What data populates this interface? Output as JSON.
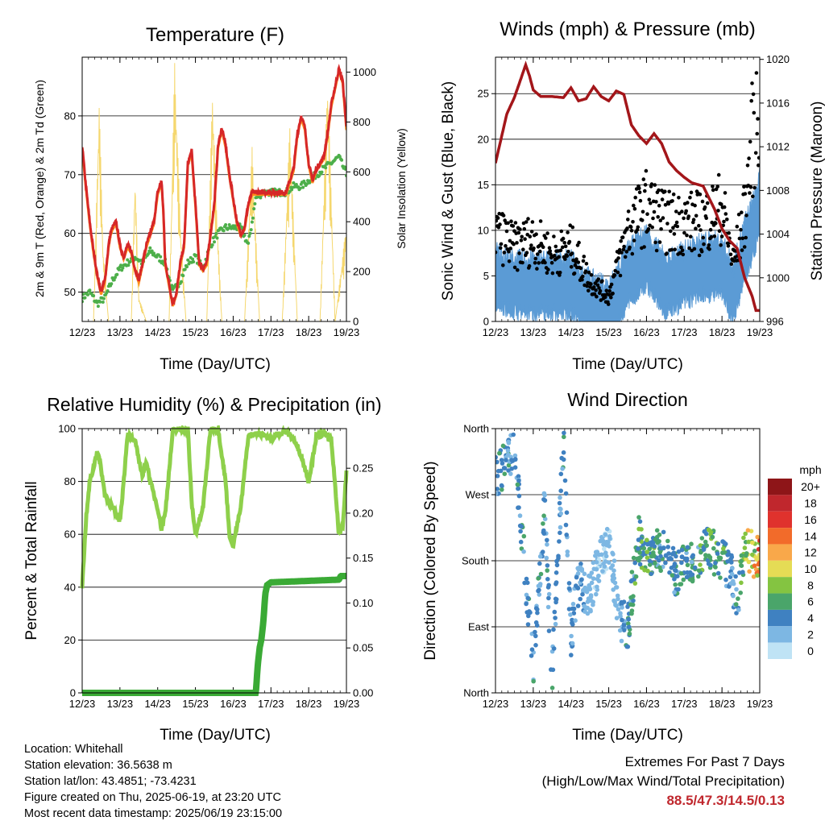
{
  "x_ticks": [
    "12/23",
    "13/23",
    "14/23",
    "15/23",
    "16/23",
    "17/23",
    "18/23",
    "19/23"
  ],
  "xlabel": "Time (Day/UTC)",
  "colors": {
    "temp_2m": "#d62728",
    "temp_9m": "#ff8c1a",
    "dewpoint": "#4daf4a",
    "solar": "#f5d76e",
    "gust": "#000000",
    "wind": "#5b9bd5",
    "pressure": "#a3161a",
    "rh": "#8ed04b",
    "rain": "#3aaa35",
    "extremes": "#c0272d"
  },
  "chart_data": [
    {
      "type": "line",
      "title": "Temperature (F)",
      "ylabel": "2m & 9m T (Red, Orange) & 2m Td (Green)",
      "y2label": "Solar Insolation (Yellow)",
      "ylim": [
        45,
        90
      ],
      "yticks": [
        50,
        60,
        70,
        80
      ],
      "y2lim": [
        0,
        1060
      ],
      "y2ticks": [
        0,
        200,
        400,
        600,
        800,
        1000
      ],
      "xlim": [
        0,
        7
      ],
      "series": [
        {
          "key": "temp",
          "x": [
            0,
            0.1,
            0.2,
            0.3,
            0.4,
            0.5,
            0.6,
            0.7,
            0.75,
            0.8,
            0.9,
            1.0,
            1.1,
            1.2,
            1.3,
            1.4,
            1.5,
            1.6,
            1.7,
            1.8,
            1.9,
            2.0,
            2.1,
            2.15,
            2.2,
            2.4,
            2.5,
            2.6,
            2.7,
            2.8,
            2.9,
            3.0,
            3.1,
            3.2,
            3.3,
            3.4,
            3.5,
            3.6,
            3.7,
            3.8,
            3.9,
            4.0,
            4.1,
            4.2,
            4.3,
            4.4,
            4.5,
            4.6,
            4.7,
            4.8,
            5.0,
            5.2,
            5.4,
            5.6,
            5.7,
            5.8,
            5.9,
            6.0,
            6.1,
            6.2,
            6.4,
            6.5,
            6.6,
            6.7,
            6.8,
            6.9,
            7.0
          ],
          "values": [
            75,
            68,
            62,
            57,
            53,
            50,
            52,
            58,
            60,
            61,
            62,
            58,
            56,
            58,
            57,
            54,
            52,
            55,
            58,
            60,
            62,
            67,
            69,
            64,
            55,
            48,
            50,
            55,
            58,
            72,
            74,
            65,
            55,
            54,
            55,
            60,
            65,
            75,
            78,
            75,
            70,
            66,
            62,
            60,
            61,
            65,
            67,
            67,
            67,
            67,
            67,
            67,
            67,
            71,
            77,
            80,
            78,
            72,
            69,
            71,
            73,
            77,
            82,
            85,
            88,
            86,
            78
          ]
        },
        {
          "key": "dewpoint",
          "x": [
            0,
            0.2,
            0.4,
            0.6,
            0.8,
            1.0,
            1.2,
            1.4,
            1.6,
            1.8,
            2.0,
            2.2,
            2.4,
            2.6,
            2.8,
            3.0,
            3.2,
            3.4,
            3.6,
            3.8,
            4.0,
            4.2,
            4.4,
            4.6,
            4.8,
            5.0,
            5.2,
            5.4,
            5.6,
            5.8,
            6.0,
            6.2,
            6.4,
            6.6,
            6.8,
            7.0
          ],
          "values": [
            49,
            50,
            48,
            49,
            52,
            54,
            55,
            56,
            55,
            57,
            56,
            55,
            50,
            52,
            55,
            56,
            54,
            58,
            60,
            61,
            61,
            61,
            58,
            66,
            67,
            67,
            67,
            67,
            68,
            68,
            69,
            70,
            71,
            72,
            73,
            70
          ]
        },
        {
          "key": "solar",
          "x": [
            0,
            0.3,
            0.45,
            0.55,
            0.7,
            1.0,
            1.3,
            1.4,
            1.5,
            1.7,
            2.0,
            2.3,
            2.45,
            2.6,
            2.75,
            3.0,
            3.3,
            3.45,
            3.55,
            3.7,
            4.0,
            4.3,
            4.5,
            4.7,
            5.0,
            5.3,
            5.5,
            5.7,
            6.0,
            6.3,
            6.5,
            6.7,
            7.0
          ],
          "values": [
            0,
            0,
            900,
            300,
            0,
            0,
            0,
            600,
            100,
            0,
            0,
            0,
            1050,
            400,
            0,
            0,
            0,
            950,
            500,
            0,
            0,
            0,
            700,
            0,
            0,
            0,
            800,
            0,
            0,
            0,
            1000,
            0,
            400
          ]
        }
      ]
    },
    {
      "type": "scatter",
      "title": "Winds (mph) & Pressure (mb)",
      "ylabel": "Sonic Wind & Gust (Blue, Black)",
      "y2label": "Station Pressure (Maroon)",
      "ylim": [
        0,
        29
      ],
      "yticks": [
        0,
        5,
        10,
        15,
        20,
        25
      ],
      "y2lim": [
        996,
        1020.2
      ],
      "y2ticks": [
        996,
        1000,
        1004,
        1008,
        1012,
        1016,
        1020
      ],
      "xlim": [
        0,
        7
      ],
      "series": [
        {
          "key": "pressure",
          "x": [
            0,
            0.1,
            0.3,
            0.5,
            0.7,
            0.8,
            0.9,
            1.0,
            1.2,
            1.5,
            1.8,
            2.0,
            2.2,
            2.4,
            2.6,
            2.8,
            3.0,
            3.2,
            3.4,
            3.6,
            3.8,
            4.0,
            4.2,
            4.4,
            4.6,
            4.8,
            5.0,
            5.2,
            5.5,
            5.8,
            6.0,
            6.2,
            6.4,
            6.6,
            6.8,
            6.9,
            7.0
          ],
          "values": [
            1010.5,
            1012,
            1015,
            1016.5,
            1018.5,
            1019.5,
            1018.5,
            1017.2,
            1016.6,
            1016.6,
            1016.5,
            1017.4,
            1016.2,
            1016.4,
            1017.5,
            1016.6,
            1016.2,
            1017.1,
            1016.8,
            1014,
            1013,
            1012.3,
            1013.2,
            1012.3,
            1010.6,
            1009.8,
            1009.2,
            1008.7,
            1008.4,
            1006.3,
            1004.5,
            1003.4,
            1002.7,
            1000,
            998.3,
            997,
            997
          ]
        },
        {
          "key": "wind_speed",
          "x": [
            0,
            0.5,
            1.0,
            1.5,
            2.0,
            2.5,
            3.0,
            3.5,
            4.0,
            4.5,
            5.0,
            5.5,
            6.0,
            6.3,
            6.6,
            6.8,
            7.0
          ],
          "values": [
            5,
            4,
            4,
            4,
            4,
            2,
            1,
            5,
            7,
            4,
            5,
            6,
            6,
            3,
            8,
            10,
            13
          ]
        },
        {
          "key": "gust",
          "x": [
            0,
            0.5,
            1.0,
            1.5,
            2.0,
            2.5,
            3.0,
            3.5,
            4.0,
            4.5,
            5.0,
            5.5,
            6.0,
            6.3,
            6.6,
            6.8,
            6.95
          ],
          "values": [
            11,
            9,
            10,
            8,
            9,
            5,
            3,
            11,
            14,
            12,
            12,
            12,
            14,
            7,
            13,
            22,
            27
          ]
        }
      ]
    },
    {
      "type": "line",
      "title": "Relative Humidity (%) & Precipitation (in)",
      "ylabel": "Percent & Total Rainfall",
      "ylim": [
        0,
        100
      ],
      "yticks": [
        0,
        20,
        40,
        60,
        80,
        100
      ],
      "y2lim": [
        0,
        0.2941
      ],
      "y2ticks": [
        0.0,
        0.05,
        0.1,
        0.15,
        0.2,
        0.25
      ],
      "xlim": [
        0,
        7
      ],
      "series": [
        {
          "key": "rh",
          "x": [
            0,
            0.1,
            0.2,
            0.3,
            0.4,
            0.5,
            0.6,
            0.8,
            1.0,
            1.1,
            1.2,
            1.4,
            1.6,
            1.7,
            1.8,
            1.9,
            2.0,
            2.1,
            2.2,
            2.4,
            2.6,
            2.8,
            2.9,
            3.0,
            3.2,
            3.4,
            3.6,
            3.8,
            3.9,
            4.0,
            4.2,
            4.4,
            4.6,
            4.8,
            5.0,
            5.2,
            5.4,
            5.6,
            5.8,
            6.0,
            6.2,
            6.4,
            6.6,
            6.8,
            6.9,
            7.0
          ],
          "values": [
            40,
            65,
            80,
            85,
            92,
            85,
            75,
            70,
            65,
            80,
            98,
            95,
            82,
            88,
            80,
            75,
            70,
            62,
            68,
            99,
            100,
            100,
            72,
            60,
            70,
            100,
            100,
            80,
            60,
            56,
            70,
            97,
            98,
            98,
            96,
            98,
            99,
            96,
            90,
            80,
            97,
            98,
            96,
            60,
            62,
            84
          ]
        },
        {
          "key": "rain",
          "x": [
            0,
            4.6,
            4.65,
            4.7,
            4.75,
            4.8,
            4.85,
            4.9,
            5.0,
            6.8,
            6.85,
            7.0
          ],
          "values": [
            0,
            0,
            0.03,
            0.05,
            0.06,
            0.08,
            0.11,
            0.12,
            0.123,
            0.126,
            0.13,
            0.13
          ]
        }
      ]
    },
    {
      "type": "scatter",
      "title": "Wind Direction",
      "ylabel": "Direction (Colored By Speed)",
      "ylim": [
        0,
        360
      ],
      "ytick_labels": [
        "North",
        "East",
        "South",
        "West",
        "North"
      ],
      "xlim": [
        0,
        7
      ],
      "colorbar": {
        "title": "mph",
        "labels": [
          "20+",
          "18",
          "16",
          "14",
          "12",
          "10",
          "8",
          "6",
          "4",
          "2",
          "0"
        ],
        "colors": [
          "#8e1518",
          "#c0272d",
          "#e0322d",
          "#f26b2a",
          "#f9a84a",
          "#e5dc55",
          "#84c441",
          "#4aa56a",
          "#3f81c1",
          "#7db7e3",
          "#bfe3f5"
        ]
      },
      "series": [
        {
          "key": "direction",
          "x": [
            0.1,
            0.5,
            1.0,
            1.3,
            1.5,
            1.8,
            2.0,
            2.2,
            2.5,
            2.8,
            3.0,
            3.3,
            3.5,
            3.8,
            4.0,
            4.3,
            4.5,
            4.8,
            5.0,
            5.3,
            5.5,
            5.8,
            6.0,
            6.2,
            6.4,
            6.6,
            6.8,
            7.0
          ],
          "values": [
            300,
            330,
            40,
            250,
            20,
            340,
            80,
            150,
            130,
            190,
            200,
            100,
            90,
            210,
            180,
            200,
            190,
            160,
            180,
            170,
            200,
            190,
            180,
            170,
            120,
            200,
            190,
            180
          ]
        }
      ]
    }
  ],
  "info": {
    "location": "Location: Whitehall",
    "elevation": "Station elevation: 36.5638 m",
    "latlon": "Station lat/lon: 43.4851; -73.4231",
    "created": "Figure created on Thu, 2025-06-19, at 23:20 UTC",
    "recent": "Most recent data timestamp: 2025/06/19 23:15:00"
  },
  "extremes": {
    "title": "Extremes For Past 7 Days",
    "subtitle": "(High/Low/Max Wind/Total Precipitation)",
    "values": "88.5/47.3/14.5/0.13"
  }
}
